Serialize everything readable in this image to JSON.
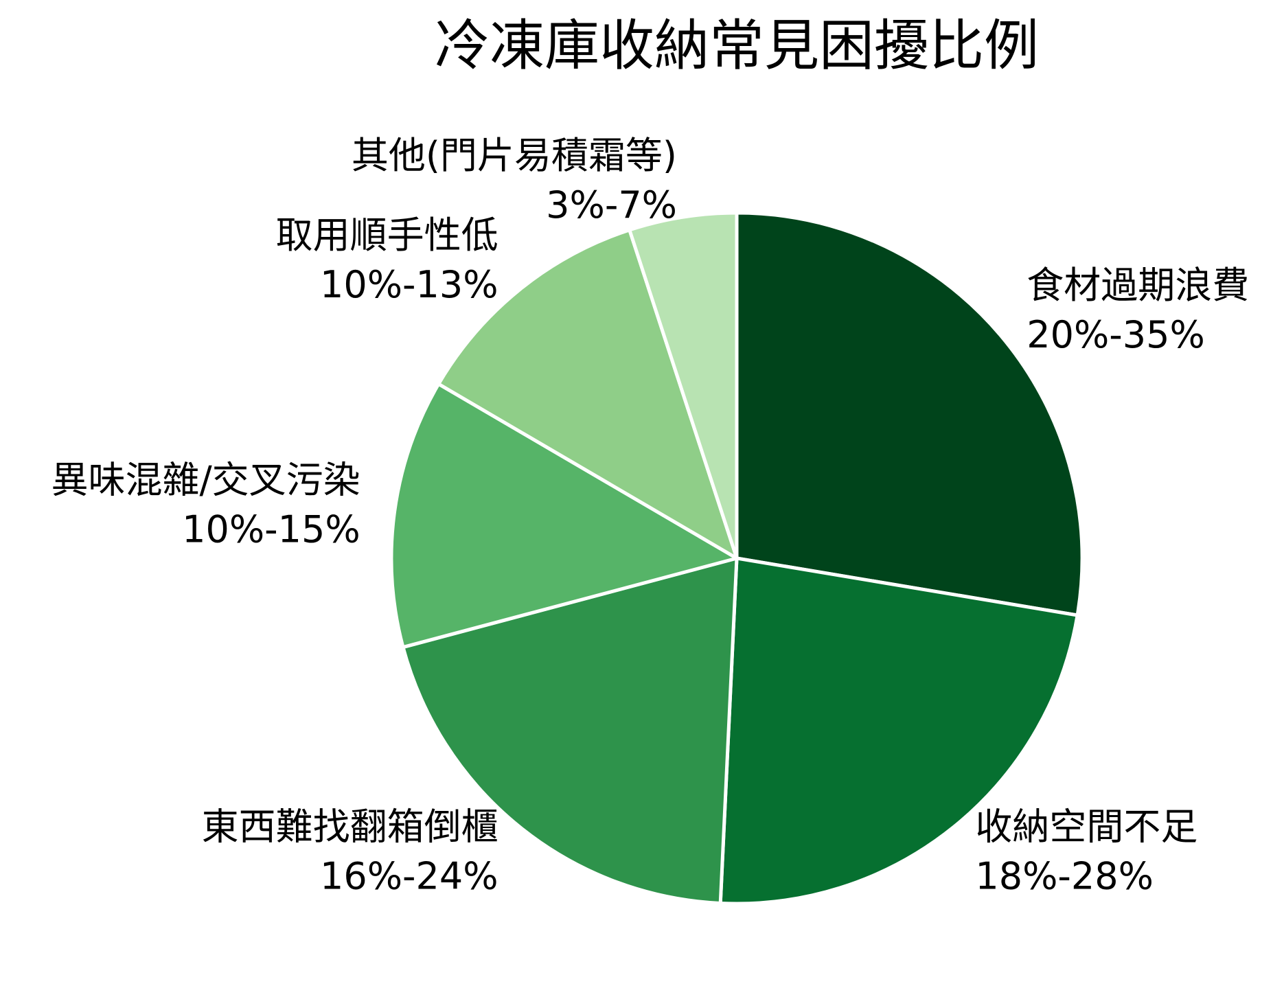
{
  "chart_data": {
    "type": "pie",
    "title": "冷凍庫收納常見困擾比例",
    "slices": [
      {
        "label": "食材過期浪費",
        "range": "20%-35%",
        "value": 27.5,
        "color": "#00441b"
      },
      {
        "label": "收納空間不足",
        "range": "18%-28%",
        "value": 23,
        "color": "#067030"
      },
      {
        "label": "東西難找翻箱倒櫃",
        "range": "16%-24%",
        "value": 20,
        "color": "#2e934b"
      },
      {
        "label": "異味混雜/交叉污染",
        "range": "10%-15%",
        "value": 12.5,
        "color": "#56b468"
      },
      {
        "label": "取用順手性低",
        "range": "10%-13%",
        "value": 11.5,
        "color": "#8fce88"
      },
      {
        "label": "其他(門片易積霜等)",
        "range": "3%-7%",
        "value": 5,
        "color": "#b8e3b2"
      }
    ]
  }
}
